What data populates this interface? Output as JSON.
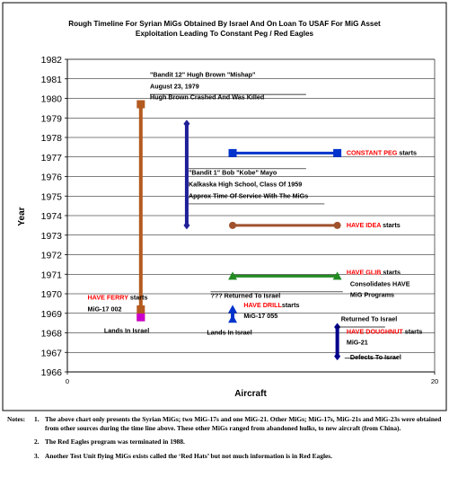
{
  "chart_data": {
    "type": "line",
    "title_line1": "Rough Timeline For Syrian MiGs Obtained By Israel And On Loan To USAF For MiG Asset",
    "title_line2": "Exploitation Leading To  Constant Peg / Red Eagles",
    "xlabel": "Aircraft",
    "ylabel": "Year",
    "xlim": [
      0,
      20
    ],
    "ylim": [
      1966,
      1982
    ],
    "x_ticks": [
      "0",
      "20"
    ],
    "y_ticks": [
      "1966",
      "1967",
      "1968",
      "1969",
      "1970",
      "1971",
      "1972",
      "1973",
      "1974",
      "1975",
      "1976",
      "1977",
      "1978",
      "1979",
      "1980",
      "1981",
      "1982"
    ],
    "grid": "horizontal",
    "series": [
      {
        "color": "#b35a1f",
        "marker": "square",
        "points": [
          [
            4,
            1968.8
          ],
          [
            4,
            1979.7
          ]
        ]
      },
      {
        "color": "#1f1f99",
        "marker": "diamond",
        "points": [
          [
            6.5,
            1973.5
          ],
          [
            6.5,
            1978.7
          ]
        ]
      },
      {
        "color": "#0033cc",
        "marker": "square",
        "points": [
          [
            9,
            1977.2
          ],
          [
            14.7,
            1977.2
          ]
        ]
      },
      {
        "color": "#a0522d",
        "marker": "circle",
        "points": [
          [
            9,
            1973.5
          ],
          [
            14.7,
            1973.5
          ]
        ]
      },
      {
        "color": "#228b22",
        "marker": "triangle",
        "points": [
          [
            9,
            1970.9
          ],
          [
            14.7,
            1970.9
          ]
        ]
      },
      {
        "color": "#0033cc",
        "marker": "triangle",
        "points": [
          [
            9,
            1968.7
          ],
          [
            9,
            1969.2
          ]
        ]
      },
      {
        "color": "#00008b",
        "marker": "diamond",
        "points": [
          [
            14.7,
            1966.8
          ],
          [
            14.7,
            1968.3
          ]
        ]
      }
    ],
    "extra_markers": [
      {
        "x": 4,
        "y": 1968.8,
        "color": "#cc00cc",
        "marker": "square"
      },
      {
        "x": 4,
        "y": 1969.2,
        "color": "#b35a1f",
        "marker": "square"
      }
    ],
    "annotations": [
      {
        "text": "\"Bandit 12\" Hugh Brown \"Mishap\"",
        "x": 4.5,
        "y": 1981.1,
        "red": false
      },
      {
        "text": "August 23, 1979",
        "x": 4.5,
        "y": 1980.5,
        "red": false
      },
      {
        "text": "Hugh Brown Crashed And Was Killed",
        "x": 4.5,
        "y": 1979.95,
        "red": false
      },
      {
        "text": "\"Bandit 1\" Bob \"Kobe\" Mayo",
        "x": 6.6,
        "y": 1976.1,
        "red": false
      },
      {
        "text": "Kalkaska High School, Class Of 1959",
        "x": 6.6,
        "y": 1975.5,
        "red": false
      },
      {
        "text": "Approx Time Of Service With The MiGs",
        "x": 6.6,
        "y": 1974.9,
        "red": false
      },
      {
        "text": "CONSTANT PEG",
        "x": 15.2,
        "y": 1977.1,
        "red": true,
        "suffix": " starts"
      },
      {
        "text": "HAVE IDEA",
        "x": 15.2,
        "y": 1973.4,
        "red": true,
        "suffix": " starts"
      },
      {
        "text": "HAVE GLIB",
        "x": 15.2,
        "y": 1971.0,
        "red": true,
        "suffix": " starts"
      },
      {
        "text": "Consolidates HAVE",
        "x": 15.4,
        "y": 1970.4,
        "red": false
      },
      {
        "text": "MiG Programs",
        "x": 15.4,
        "y": 1969.85,
        "red": false
      },
      {
        "text": "HAVE FERRY",
        "x": 1.1,
        "y": 1969.7,
        "red": true,
        "suffix": " starts"
      },
      {
        "text": "MiG-17 002",
        "x": 1.1,
        "y": 1969.1,
        "red": false
      },
      {
        "text": "Lands In Israel",
        "x": 2.0,
        "y": 1968.0,
        "red": false
      },
      {
        "text": "??? Returned To Israel",
        "x": 7.8,
        "y": 1969.8,
        "red": false
      },
      {
        "text": "HAVE DRILL",
        "x": 9.6,
        "y": 1969.3,
        "red": true,
        "suffix": "starts"
      },
      {
        "text": "MiG-17 055",
        "x": 9.6,
        "y": 1968.75,
        "red": false
      },
      {
        "text": "Lands In Israel",
        "x": 7.6,
        "y": 1967.9,
        "red": false
      },
      {
        "text": "Returned To Israel",
        "x": 14.9,
        "y": 1968.6,
        "red": false
      },
      {
        "text": "HAVE DOUGHNUT",
        "x": 15.2,
        "y": 1967.95,
        "red": true,
        "suffix": "  starts"
      },
      {
        "text": "MiG-21",
        "x": 15.2,
        "y": 1967.4,
        "red": false
      },
      {
        "text": "Defects To Israel",
        "x": 15.4,
        "y": 1966.65,
        "red": false
      }
    ],
    "leaders": [
      {
        "from": [
          4.5,
          1980.2
        ],
        "to": [
          13,
          1980.2
        ]
      },
      {
        "from": [
          6.6,
          1974.6
        ],
        "to": [
          14,
          1974.6
        ]
      },
      {
        "from": [
          6.6,
          1976.4
        ],
        "to": [
          13,
          1976.4
        ]
      },
      {
        "from": [
          14.7,
          1968.3
        ],
        "to": [
          17.3,
          1968.3
        ]
      },
      {
        "from": [
          15.1,
          1966.7
        ],
        "to": [
          18,
          1966.7
        ]
      },
      {
        "from": [
          7.8,
          1970.1
        ],
        "to": [
          15,
          1970.1
        ]
      }
    ]
  },
  "notes": {
    "label": "Notes:",
    "items": [
      {
        "num": "1.",
        "text": "The above chart only presents the Syrian MiGs; two MiG-17s and one MiG-21.  Other MiGs; MiG-17s, MiG-21s and MiG-23s were obtained from other sources during the time line above.  These other MiGs ranged from abandoned hulks, to new aircraft (from China)."
      },
      {
        "num": "2.",
        "text": "The Red Eagles program was terminated in 1988."
      },
      {
        "num": "3.",
        "text": "Another Test Unit flying MiGs exists called the ‘Red Hats’ but not much information is in Red Eagles."
      }
    ]
  }
}
